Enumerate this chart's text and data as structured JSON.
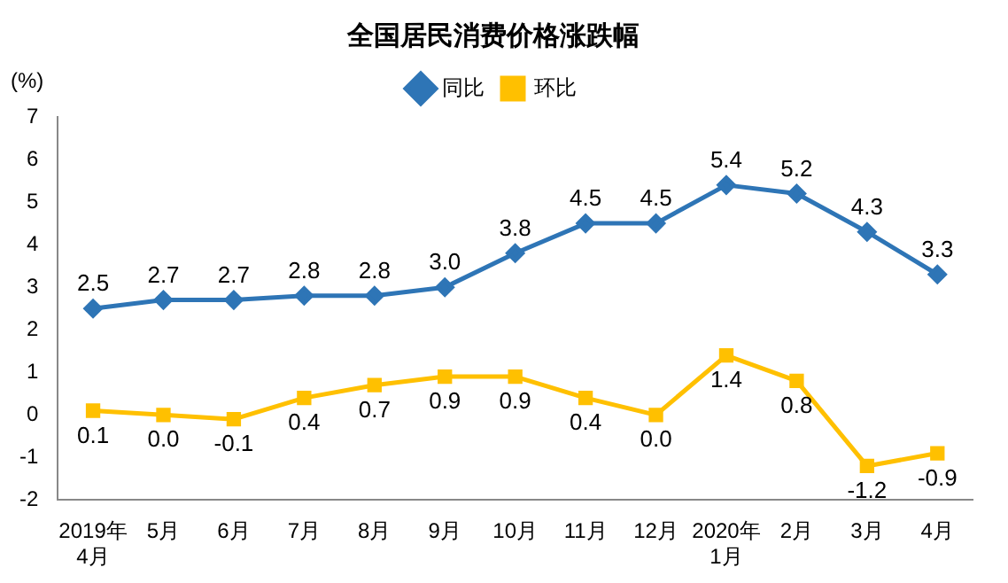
{
  "chart_data": {
    "type": "line",
    "title": "全国居民消费价格涨跌幅",
    "ylabel": "(%)",
    "categories": [
      "2019年\n4月",
      "5月",
      "6月",
      "7月",
      "8月",
      "9月",
      "10月",
      "11月",
      "12月",
      "2020年\n1月",
      "2月",
      "3月",
      "4月"
    ],
    "series": [
      {
        "name": "同比",
        "color": "#2e75b6",
        "marker": "diamond",
        "values": [
          2.5,
          2.7,
          2.7,
          2.8,
          2.8,
          3.0,
          3.8,
          4.5,
          4.5,
          5.4,
          5.2,
          4.3,
          3.3
        ],
        "value_labels": [
          "2.5",
          "2.7",
          "2.7",
          "2.8",
          "2.8",
          "3.0",
          "3.8",
          "4.5",
          "4.5",
          "5.4",
          "5.2",
          "4.3",
          "3.3"
        ]
      },
      {
        "name": "环比",
        "color": "#ffc000",
        "marker": "square",
        "values": [
          0.1,
          0.0,
          -0.1,
          0.4,
          0.7,
          0.9,
          0.9,
          0.4,
          0.0,
          1.4,
          0.8,
          -1.2,
          -0.9
        ],
        "value_labels": [
          "0.1",
          "0.0",
          "-0.1",
          "0.4",
          "0.7",
          "0.9",
          "0.9",
          "0.4",
          "0.0",
          "1.4",
          "0.8",
          "-1.2",
          "-0.9"
        ]
      }
    ],
    "ylim": [
      -2,
      7
    ],
    "yticks": [
      -2,
      -1,
      0,
      1,
      2,
      3,
      4,
      5,
      6,
      7
    ],
    "grid": false,
    "legend": "top",
    "line_style": "solid"
  }
}
